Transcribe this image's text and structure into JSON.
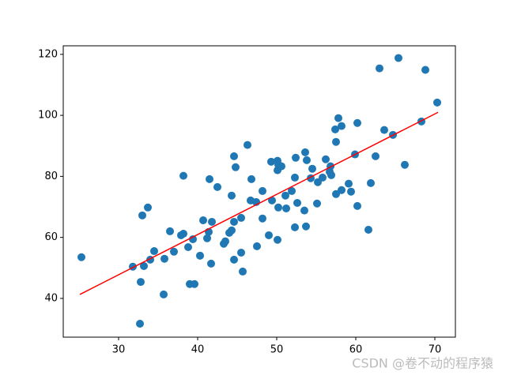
{
  "chart_data": {
    "type": "scatter",
    "color": "#1f77b4",
    "x": [
      25.3,
      31.8,
      32.8,
      32.7,
      33.0,
      33.2,
      33.7,
      34.0,
      34.5,
      35.7,
      35.8,
      36.5,
      37.0,
      37.9,
      38.2,
      38.2,
      38.8,
      39.0,
      39.6,
      39.4,
      40.3,
      40.7,
      41.2,
      41.4,
      41.5,
      41.7,
      41.8,
      42.5,
      43.3,
      43.5,
      44.0,
      44.3,
      44.3,
      44.6,
      44.6,
      44.6,
      44.8,
      45.5,
      45.5,
      45.7,
      46.3,
      46.7,
      46.8,
      47.4,
      47.5,
      48.2,
      48.2,
      49.0,
      49.3,
      49.4,
      50.1,
      50.1,
      50.1,
      50.2,
      50.2,
      50.6,
      51.1,
      51.2,
      51.9,
      52.3,
      52.3,
      52.4,
      52.6,
      53.5,
      53.6,
      53.7,
      53.8,
      54.3,
      54.5,
      55.1,
      55.2,
      55.8,
      56.2,
      56.7,
      56.8,
      56.9,
      57.4,
      57.5,
      57.5,
      57.8,
      58.2,
      58.2,
      59.1,
      59.4,
      59.9,
      60.2,
      60.2,
      61.6,
      61.9,
      62.5,
      63.0,
      63.6,
      64.7,
      65.4,
      66.2,
      68.3,
      68.8,
      70.3
    ],
    "values": [
      53.5,
      50.4,
      45.4,
      31.7,
      67.2,
      50.6,
      69.8,
      52.7,
      55.5,
      41.3,
      53.0,
      62.0,
      55.3,
      60.7,
      61.2,
      80.2,
      56.8,
      44.7,
      44.7,
      59.4,
      54.0,
      65.6,
      59.7,
      61.8,
      79.1,
      51.4,
      65.1,
      76.5,
      57.9,
      58.7,
      61.5,
      62.3,
      73.7,
      86.6,
      65.1,
      52.7,
      83.0,
      66.4,
      55.0,
      48.8,
      90.3,
      72.1,
      79.1,
      71.6,
      57.1,
      75.2,
      66.2,
      60.7,
      84.8,
      72.1,
      85.1,
      82.0,
      59.2,
      69.8,
      83.8,
      83.3,
      73.7,
      69.5,
      75.2,
      79.6,
      63.3,
      86.1,
      71.3,
      68.8,
      87.9,
      63.6,
      85.3,
      79.4,
      82.5,
      71.1,
      78.1,
      79.6,
      85.6,
      81.5,
      83.3,
      80.4,
      95.4,
      91.3,
      74.2,
      99.1,
      96.5,
      75.5,
      77.6,
      75.0,
      87.2,
      97.5,
      70.3,
      62.5,
      77.8,
      86.6,
      115.4,
      95.2,
      93.6,
      118.8,
      83.8,
      98.0,
      114.9,
      104.2
    ],
    "fit_line": {
      "x": [
        25.1,
        70.4
      ],
      "values": [
        41.3,
        101.0
      ],
      "color": "#ff0000"
    },
    "xlim": [
      23.0,
      72.6
    ],
    "ylim": [
      27.3,
      122.8
    ],
    "xticks": [
      30,
      40,
      50,
      60,
      70
    ],
    "yticks": [
      40,
      60,
      80,
      100,
      120
    ],
    "watermark": "CSDN @卷不动的程序猿"
  }
}
